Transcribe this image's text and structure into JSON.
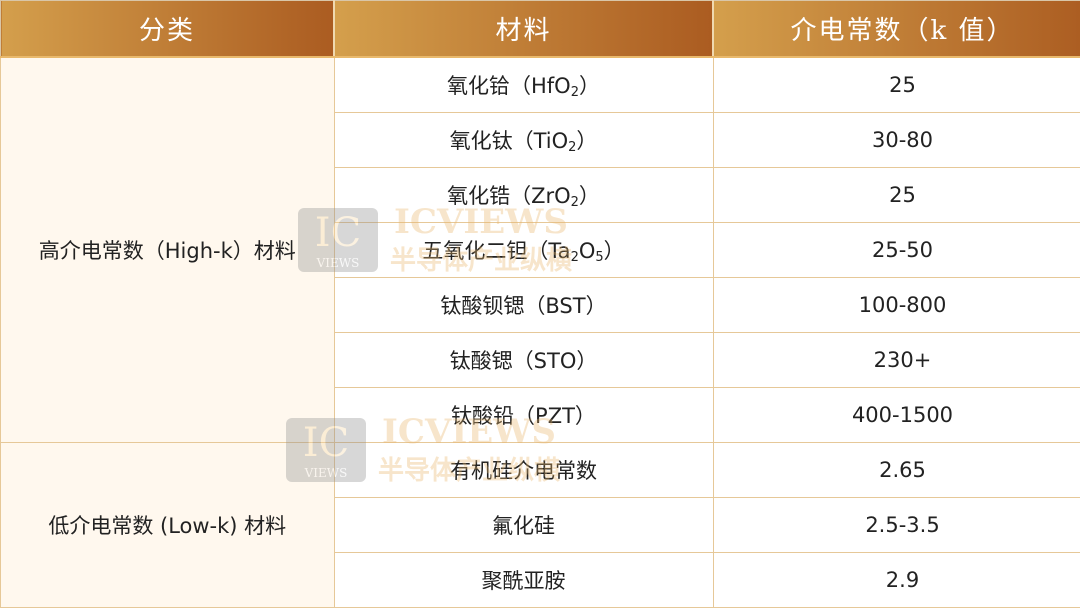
{
  "headers": [
    "分类",
    "材料",
    "介电常数（k 值）"
  ],
  "groups": [
    {
      "category": "高介电常数（High-k）材料",
      "rows": [
        {
          "material": "氧化铪（HfO",
          "sub": "2",
          "suffix": "）",
          "k": "25"
        },
        {
          "material": "氧化钛（TiO",
          "sub": "2",
          "suffix": "）",
          "k": "30-80"
        },
        {
          "material": "氧化锆（ZrO",
          "sub": "2",
          "suffix": "）",
          "k": "25"
        },
        {
          "material": "五氧化二钽（Ta",
          "sub": "2",
          "mid": "O",
          "sub2": "5",
          "suffix": "）",
          "k": "25-50"
        },
        {
          "material": "钛酸钡锶（BST）",
          "k": "100-800"
        },
        {
          "material": "钛酸锶（STO）",
          "k": "230+"
        },
        {
          "material": "钛酸铅（PZT）",
          "k": "400-1500"
        }
      ]
    },
    {
      "category": "低介电常数 (Low-k) 材料",
      "rows": [
        {
          "material": "有机硅介电常数",
          "k": "2.65"
        },
        {
          "material": "氟化硅",
          "k": "2.5-3.5"
        },
        {
          "material": "聚酰亚胺",
          "k": "2.9"
        }
      ]
    }
  ],
  "watermark": {
    "logo": "IC",
    "logo_sub": "VIEWS",
    "title": "ICVIEWS",
    "subtitle": "半导体产业纵横"
  },
  "colors": {
    "header_start": "#d49f4c",
    "header_end": "#ab5c21",
    "category_bg": "#fff8ee",
    "border": "#e6c898"
  }
}
